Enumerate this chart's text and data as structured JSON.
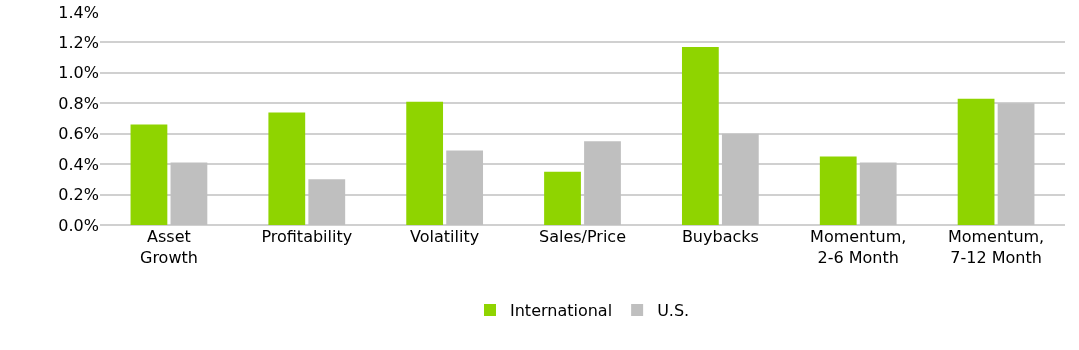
{
  "chart_data": {
    "type": "bar",
    "categories": [
      "Asset\nGrowth",
      "Profitability",
      "Volatility",
      "Sales/Price",
      "Buybacks",
      "Momentum,\n2-6 Month",
      "Momentum,\n7-12 Month"
    ],
    "series": [
      {
        "name": "International",
        "color": "#8fd400",
        "values": [
          0.66,
          0.74,
          0.81,
          0.35,
          1.17,
          0.45,
          0.83
        ]
      },
      {
        "name": "U.S.",
        "color": "#bfbfbf",
        "values": [
          0.41,
          0.3,
          0.49,
          0.55,
          0.6,
          0.41,
          0.8
        ]
      }
    ],
    "ylim": [
      0,
      1.4
    ],
    "yticks": [
      {
        "value": 0,
        "label": "0.0%"
      },
      {
        "value": 0.2,
        "label": "0.2%"
      },
      {
        "value": 0.4,
        "label": "0.4%"
      },
      {
        "value": 0.6,
        "label": "0.6%"
      },
      {
        "value": 0.8,
        "label": "0.8%"
      },
      {
        "value": 1,
        "label": "1.0%"
      },
      {
        "value": 1.2,
        "label": "1.2%"
      },
      {
        "value": 1.4,
        "label": "1.4%"
      }
    ],
    "grid": "y",
    "legend": "bottom"
  }
}
